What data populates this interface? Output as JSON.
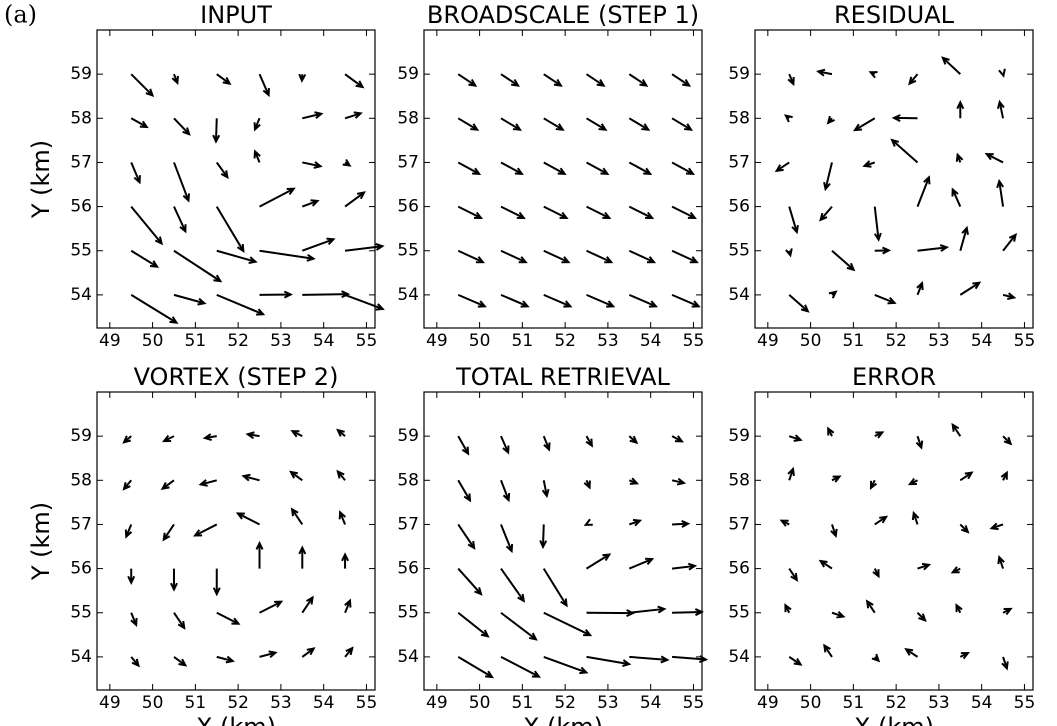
{
  "figure_label": "(a)",
  "chart_data": [
    {
      "type": "quiver",
      "title": "INPUT",
      "ylabel": "Y (km)",
      "color": "#000000",
      "x": [
        49.5,
        50.5,
        51.5,
        52.5,
        53.5,
        54.5
      ],
      "y": [
        54,
        55,
        56,
        57,
        58,
        59
      ],
      "u": [
        [
          1.19,
          0.8,
          1.22,
          0.82,
          1.2,
          0.99
        ],
        [
          0.68,
          1.22,
          1.02,
          1.42,
          0.82,
          0.98
        ],
        [
          0.8,
          0.3,
          0.7,
          0.9,
          0.4,
          0.5
        ],
        [
          0.22,
          0.38,
          0.28,
          -0.12,
          0.48,
          0.12
        ],
        [
          0.41,
          0.4,
          -0.02,
          -0.12,
          0.5,
          0.41
        ],
        [
          0.56,
          0.09,
          0.34,
          0.24,
          -0.01,
          0.46
        ]
      ],
      "v": [
        [
          -0.73,
          -0.22,
          -0.51,
          0.01,
          0.02,
          -0.37
        ],
        [
          -0.42,
          -0.8,
          -0.29,
          -0.21,
          0.3,
          0.12
        ],
        [
          -0.97,
          -0.65,
          -1.17,
          0.47,
          0.15,
          0.37
        ],
        [
          -0.52,
          -1.0,
          -0.39,
          0.29,
          -0.1,
          -0.08
        ],
        [
          -0.23,
          -0.42,
          -0.61,
          -0.29,
          0.12,
          0.13
        ],
        [
          -0.56,
          -0.23,
          -0.25,
          -0.55,
          -0.17,
          -0.34
        ]
      ],
      "xlim": [
        48.7,
        55.2
      ],
      "ylim": [
        53.25,
        60.0
      ],
      "xticks": [
        49,
        50,
        51,
        52,
        53,
        54,
        55
      ],
      "yticks": [
        54,
        55,
        56,
        57,
        58,
        59
      ]
    },
    {
      "type": "quiver",
      "title": "BROADSCALE (STEP 1)",
      "color": "#000000",
      "x": [
        49.5,
        50.5,
        51.5,
        52.5,
        53.5,
        54.5
      ],
      "y": [
        54,
        55,
        56,
        57,
        58,
        59
      ],
      "u": [
        [
          0.7,
          0.7,
          0.7,
          0.7,
          0.7,
          0.7
        ],
        [
          0.65,
          0.65,
          0.65,
          0.65,
          0.65,
          0.65
        ],
        [
          0.6,
          0.6,
          0.6,
          0.6,
          0.6,
          0.6
        ],
        [
          0.55,
          0.55,
          0.55,
          0.55,
          0.55,
          0.55
        ],
        [
          0.5,
          0.5,
          0.5,
          0.5,
          0.5,
          0.5
        ],
        [
          0.45,
          0.45,
          0.45,
          0.45,
          0.45,
          0.45
        ]
      ],
      "v": [
        [
          -0.3,
          -0.3,
          -0.3,
          -0.3,
          -0.3,
          -0.3
        ],
        [
          -0.3,
          -0.3,
          -0.3,
          -0.3,
          -0.3,
          -0.3
        ],
        [
          -0.3,
          -0.3,
          -0.3,
          -0.3,
          -0.3,
          -0.3
        ],
        [
          -0.3,
          -0.3,
          -0.3,
          -0.3,
          -0.3,
          -0.3
        ],
        [
          -0.3,
          -0.3,
          -0.3,
          -0.3,
          -0.3,
          -0.3
        ],
        [
          -0.3,
          -0.3,
          -0.3,
          -0.3,
          -0.3,
          -0.3
        ]
      ],
      "xlim": [
        48.7,
        55.2
      ],
      "ylim": [
        53.25,
        60.0
      ],
      "xticks": [
        49,
        50,
        51,
        52,
        53,
        54,
        55
      ],
      "yticks": [
        54,
        55,
        56,
        57,
        58,
        59
      ]
    },
    {
      "type": "quiver",
      "title": "RESIDUAL",
      "color": "#000000",
      "x": [
        49.5,
        50.5,
        51.5,
        52.5,
        53.5,
        54.5
      ],
      "y": [
        54,
        55,
        56,
        57,
        58,
        59
      ],
      "u": [
        [
          0.49,
          0.1,
          0.52,
          0.12,
          0.5,
          0.29
        ],
        [
          0.03,
          0.57,
          0.37,
          0.77,
          0.17,
          0.33
        ],
        [
          0.2,
          -0.3,
          0.1,
          0.3,
          -0.2,
          -0.1
        ],
        [
          -0.33,
          -0.17,
          -0.27,
          -0.67,
          -0.07,
          -0.43
        ],
        [
          -0.09,
          -0.1,
          -0.52,
          -0.62,
          0,
          -0.09
        ],
        [
          0.11,
          -0.36,
          -0.11,
          -0.21,
          -0.46,
          0.01
        ]
      ],
      "v": [
        [
          -0.43,
          0.08,
          -0.21,
          0.31,
          0.32,
          -0.07
        ],
        [
          -0.12,
          -0.5,
          0.01,
          0.09,
          0.6,
          0.42
        ],
        [
          -0.67,
          -0.35,
          -0.87,
          0.77,
          0.45,
          0.67
        ],
        [
          -0.22,
          -0.7,
          -0.09,
          0.59,
          0.2,
          0.22
        ],
        [
          0.07,
          -0.12,
          -0.31,
          0.01,
          0.42,
          0.43
        ],
        [
          -0.26,
          0.07,
          0.05,
          -0.25,
          0.43,
          -0.04
        ]
      ],
      "xlim": [
        48.7,
        55.2
      ],
      "ylim": [
        53.25,
        60.0
      ],
      "xticks": [
        49,
        50,
        51,
        52,
        53,
        54,
        55
      ],
      "yticks": [
        54,
        55,
        56,
        57,
        58,
        59
      ]
    },
    {
      "type": "quiver",
      "title": "VORTEX (STEP 2)",
      "xlabel": "X (km)",
      "ylabel": "Y (km)",
      "color": "#000000",
      "x": [
        49.5,
        50.5,
        51.5,
        52.5,
        53.5,
        54.5
      ],
      "y": [
        54,
        55,
        56,
        57,
        58,
        59
      ],
      "u": [
        [
          0.19,
          0.3,
          0.42,
          0.42,
          0.3,
          0.19
        ],
        [
          0.13,
          0.27,
          0.57,
          0.57,
          0.27,
          0.13
        ],
        [
          0,
          0,
          0,
          0,
          0,
          0
        ],
        [
          -0.13,
          -0.27,
          -0.57,
          -0.57,
          -0.27,
          -0.13
        ],
        [
          -0.19,
          -0.3,
          -0.42,
          -0.42,
          -0.3,
          -0.19
        ],
        [
          -0.19,
          -0.26,
          -0.31,
          -0.31,
          -0.26,
          -0.19
        ]
      ],
      "v": [
        [
          -0.23,
          -0.22,
          -0.11,
          0.11,
          0.22,
          0.23
        ],
        [
          -0.32,
          -0.4,
          -0.29,
          0.29,
          0.4,
          0.32
        ],
        [
          -0.37,
          -0.55,
          -0.67,
          0.67,
          0.55,
          0.37
        ],
        [
          -0.32,
          -0.4,
          -0.29,
          0.29,
          0.4,
          0.32
        ],
        [
          -0.23,
          -0.22,
          -0.11,
          0.11,
          0.22,
          0.23
        ],
        [
          -0.16,
          -0.13,
          -0.05,
          0.05,
          0.13,
          0.16
        ]
      ],
      "xlim": [
        48.7,
        55.2
      ],
      "ylim": [
        53.25,
        60.0
      ],
      "xticks": [
        49,
        50,
        51,
        52,
        53,
        54,
        55
      ],
      "yticks": [
        54,
        55,
        56,
        57,
        58,
        59
      ]
    },
    {
      "type": "quiver",
      "title": "TOTAL RETRIEVAL",
      "xlabel": "X (km)",
      "color": "#000000",
      "x": [
        49.5,
        50.5,
        51.5,
        52.5,
        53.5,
        54.5
      ],
      "y": [
        54,
        55,
        56,
        57,
        58,
        59
      ],
      "u": [
        [
          0.89,
          1.0,
          1.12,
          1.12,
          1.0,
          0.89
        ],
        [
          0.78,
          0.92,
          1.22,
          1.22,
          0.92,
          0.78
        ],
        [
          0.6,
          0.6,
          0.6,
          0.6,
          0.6,
          0.6
        ],
        [
          0.42,
          0.28,
          -0.02,
          -0.02,
          0.28,
          0.42
        ],
        [
          0.31,
          0.2,
          0.08,
          0.08,
          0.2,
          0.31
        ],
        [
          0.26,
          0.19,
          0.14,
          0.14,
          0.19,
          0.26
        ]
      ],
      "v": [
        [
          -0.53,
          -0.52,
          -0.41,
          -0.19,
          -0.08,
          -0.07
        ],
        [
          -0.62,
          -0.7,
          -0.59,
          -0.01,
          0.1,
          0.02
        ],
        [
          -0.67,
          -0.85,
          -0.97,
          0.37,
          0.25,
          0.07
        ],
        [
          -0.62,
          -0.7,
          -0.59,
          -0.01,
          0.1,
          0.02
        ],
        [
          -0.53,
          -0.52,
          -0.41,
          -0.19,
          -0.08,
          -0.07
        ],
        [
          -0.46,
          -0.43,
          -0.35,
          -0.25,
          -0.17,
          -0.14
        ]
      ],
      "xlim": [
        48.7,
        55.2
      ],
      "ylim": [
        53.25,
        60.0
      ],
      "xticks": [
        49,
        50,
        51,
        52,
        53,
        54,
        55
      ],
      "yticks": [
        54,
        55,
        56,
        57,
        58,
        59
      ]
    },
    {
      "type": "quiver",
      "title": "ERROR",
      "xlabel": "X (km)",
      "color": "#000000",
      "x": [
        49.5,
        50.5,
        51.5,
        52.5,
        53.5,
        54.5
      ],
      "y": [
        54,
        55,
        56,
        57,
        58,
        59
      ],
      "u": [
        [
          0.3,
          -0.2,
          0.1,
          -0.3,
          0.2,
          0.1
        ],
        [
          -0.1,
          0.3,
          -0.2,
          0.2,
          -0.1,
          0.2
        ],
        [
          0.2,
          -0.3,
          0.1,
          0.3,
          -0.2,
          -0.1
        ],
        [
          -0.2,
          0.1,
          0.3,
          -0.1,
          0.2,
          -0.3
        ],
        [
          0.1,
          0.2,
          -0.1,
          -0.2,
          0.3,
          0.1
        ],
        [
          0.3,
          -0.1,
          0.2,
          0.1,
          -0.2,
          0.2
        ]
      ],
      "v": [
        [
          -0.2,
          0.3,
          -0.1,
          0.2,
          0.1,
          -0.3
        ],
        [
          0.2,
          -0.1,
          0.3,
          -0.2,
          0.2,
          0.1
        ],
        [
          -0.3,
          0.2,
          -0.2,
          0.1,
          -0.1,
          0.3
        ],
        [
          0.1,
          -0.3,
          0.2,
          0.3,
          -0.2,
          -0.1
        ],
        [
          0.3,
          0.1,
          -0.2,
          -0.1,
          0.2,
          0.2
        ],
        [
          -0.1,
          0.2,
          0.1,
          -0.3,
          0.3,
          -0.2
        ]
      ],
      "xlim": [
        48.7,
        55.2
      ],
      "ylim": [
        53.25,
        60.0
      ],
      "xticks": [
        49,
        50,
        51,
        52,
        53,
        54,
        55
      ],
      "yticks": [
        54,
        55,
        56,
        57,
        58,
        59
      ]
    }
  ]
}
